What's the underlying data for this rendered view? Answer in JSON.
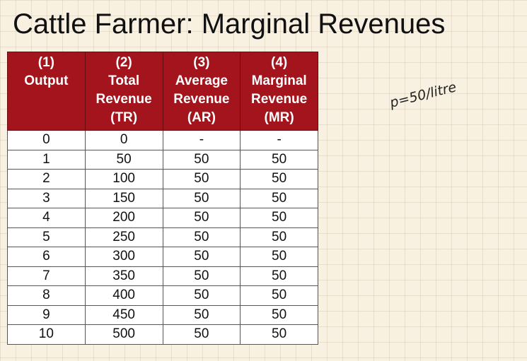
{
  "title": "Cattle Farmer: Marginal Revenues",
  "note": "p=50/litre",
  "table": {
    "header": [
      [
        "(1)",
        "Output"
      ],
      [
        "(2)",
        "Total",
        "Revenue",
        "(TR)"
      ],
      [
        "(3)",
        "Average",
        "Revenue",
        "(AR)"
      ],
      [
        "(4)",
        "Marginal",
        "Revenue",
        "(MR)"
      ]
    ],
    "rows": [
      [
        "0",
        "0",
        "-",
        "-"
      ],
      [
        "1",
        "50",
        "50",
        "50"
      ],
      [
        "2",
        "100",
        "50",
        "50"
      ],
      [
        "3",
        "150",
        "50",
        "50"
      ],
      [
        "4",
        "200",
        "50",
        "50"
      ],
      [
        "5",
        "250",
        "50",
        "50"
      ],
      [
        "6",
        "300",
        "50",
        "50"
      ],
      [
        "7",
        "350",
        "50",
        "50"
      ],
      [
        "8",
        "400",
        "50",
        "50"
      ],
      [
        "9",
        "450",
        "50",
        "50"
      ],
      [
        "10",
        "500",
        "50",
        "50"
      ]
    ]
  }
}
